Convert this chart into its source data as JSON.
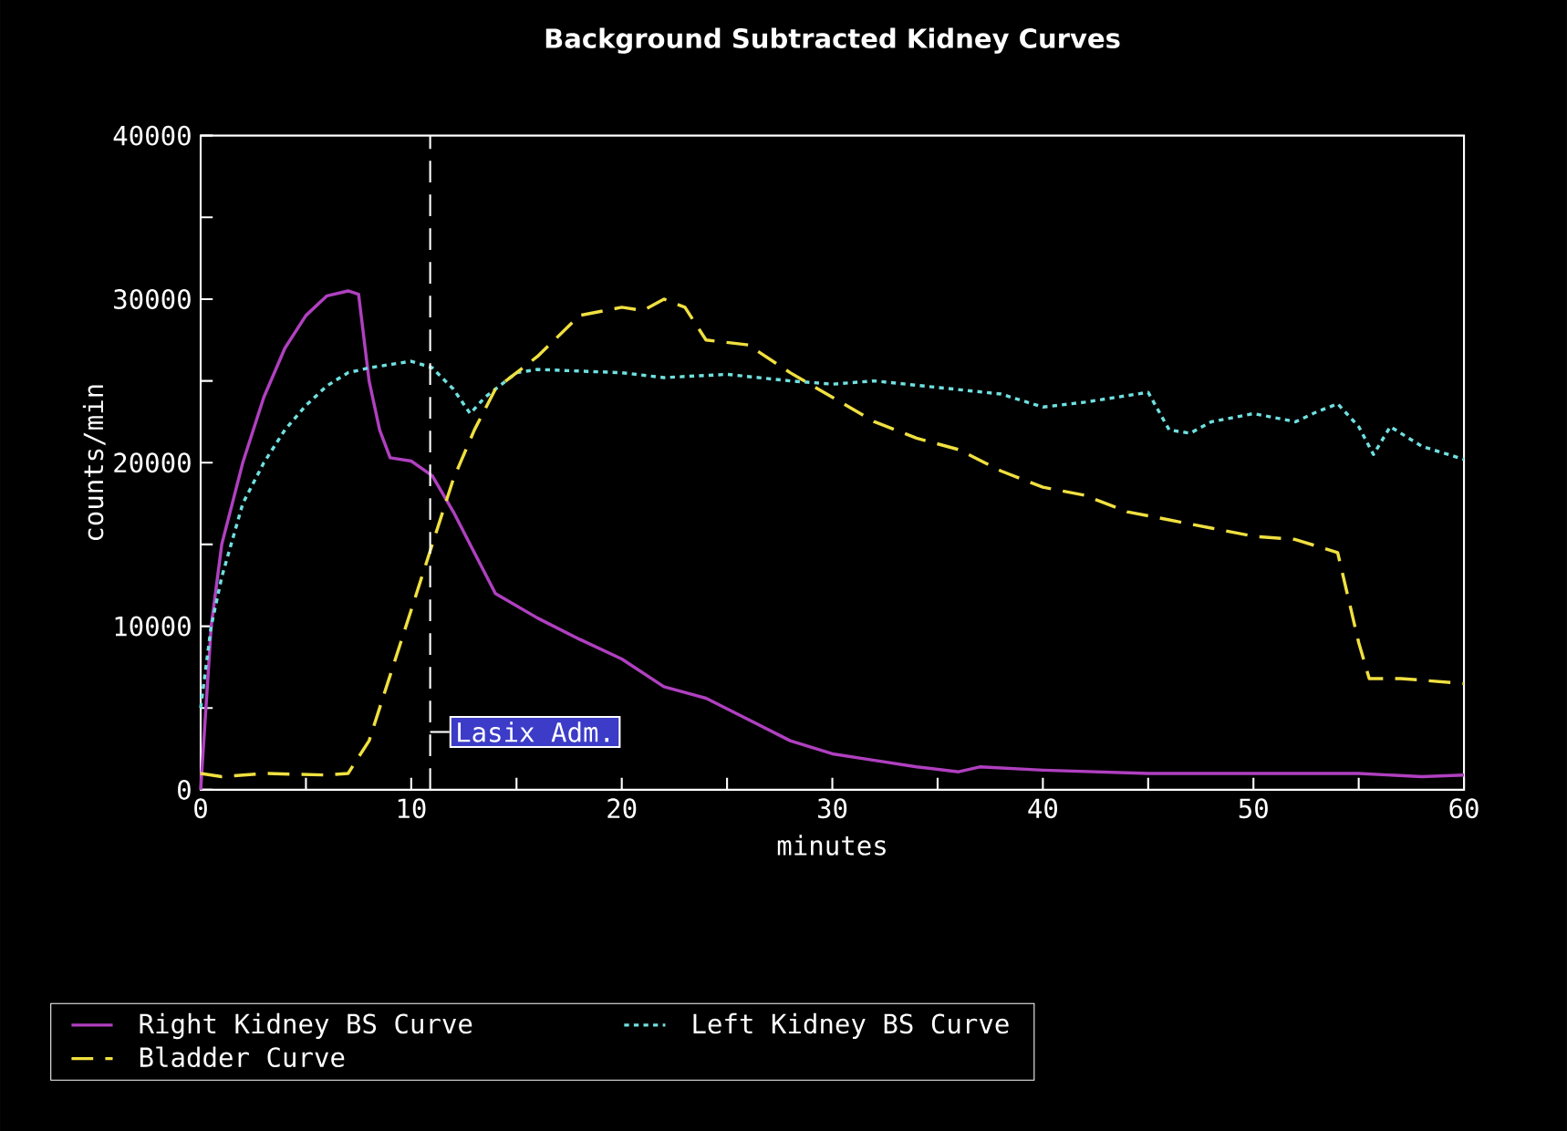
{
  "chart_data": {
    "type": "line",
    "title": "Background Subtracted Kidney Curves",
    "xlabel": "minutes",
    "ylabel": "counts/min",
    "xlim": [
      0,
      60
    ],
    "ylim": [
      0,
      40000
    ],
    "xticks": [
      0,
      {
        "value": 5,
        "label": null
      },
      10,
      {
        "value": 15,
        "label": null
      },
      20,
      {
        "value": 25,
        "label": null
      },
      30,
      {
        "value": 35,
        "label": null
      },
      40,
      {
        "value": 45,
        "label": null
      },
      50,
      {
        "value": 55,
        "label": null
      },
      60
    ],
    "yticks": [
      0,
      {
        "value": 5000,
        "label": null
      },
      10000,
      {
        "value": 15000,
        "label": null
      },
      20000,
      {
        "value": 25000,
        "label": null
      },
      30000,
      {
        "value": 35000,
        "label": null
      },
      40000
    ],
    "grid": false,
    "legend": "bottom",
    "marker": "none",
    "ref_lines": [
      {
        "axis": "x",
        "value": 10.9,
        "label": "Lasix Adm.",
        "color": "#ffffff",
        "line_style": "dashed"
      }
    ],
    "series": [
      {
        "name": "Right Kidney BS Curve",
        "color": "#b040c0",
        "line_style": "solid",
        "x": [
          0,
          0.3,
          0.5,
          1,
          2,
          3,
          4,
          5,
          6,
          7,
          7.5,
          8,
          8.5,
          9,
          10,
          11,
          12,
          14,
          16,
          18,
          20,
          22,
          24,
          26,
          28,
          30,
          32,
          34,
          36,
          37,
          40,
          45,
          50,
          55,
          58,
          60
        ],
        "values": [
          0,
          6000,
          10000,
          15000,
          20000,
          24000,
          27000,
          29000,
          30200,
          30500,
          30300,
          25000,
          22000,
          20300,
          20100,
          19200,
          17000,
          12000,
          10500,
          9200,
          8000,
          6300,
          5600,
          4300,
          3000,
          2200,
          1800,
          1400,
          1100,
          1400,
          1200,
          1000,
          1000,
          1000,
          800,
          900
        ]
      },
      {
        "name": "Left Kidney BS Curve",
        "color": "#70e0e0",
        "line_style": "dotted",
        "x": [
          0,
          0.3,
          0.5,
          1,
          2,
          3,
          4,
          5,
          6,
          7,
          8,
          10,
          11,
          12,
          12.8,
          13.5,
          15,
          16,
          20,
          22,
          25,
          28,
          30,
          32,
          35,
          38,
          40,
          42,
          44,
          45,
          46,
          47,
          48,
          50,
          52,
          53,
          54,
          55,
          55.7,
          56.5,
          58,
          60
        ],
        "values": [
          5000,
          8000,
          10000,
          13000,
          17500,
          20000,
          22000,
          23500,
          24700,
          25500,
          25800,
          26200,
          25800,
          24500,
          23000,
          24000,
          25500,
          25700,
          25500,
          25200,
          25400,
          25000,
          24800,
          25000,
          24600,
          24200,
          23400,
          23700,
          24100,
          24300,
          22000,
          21800,
          22500,
          23000,
          22500,
          23100,
          23600,
          22200,
          20500,
          22200,
          21000,
          20200
        ]
      },
      {
        "name": "Bladder Curve",
        "color": "#f0e040",
        "line_style": "dashed",
        "x": [
          0,
          1,
          3,
          6,
          7,
          8,
          9,
          10,
          11,
          12,
          13,
          14,
          16,
          18,
          20,
          21,
          22,
          23,
          24,
          26,
          28,
          30,
          32,
          34,
          36,
          38,
          40,
          42,
          44,
          46,
          48,
          50,
          52,
          54,
          55,
          55.5,
          57,
          60
        ],
        "values": [
          1000,
          800,
          1000,
          900,
          1000,
          3000,
          7000,
          11000,
          15000,
          19000,
          22000,
          24500,
          26500,
          29000,
          29500,
          29300,
          30000,
          29500,
          27500,
          27200,
          25500,
          24000,
          22500,
          21500,
          20800,
          19500,
          18500,
          18000,
          17000,
          16500,
          16000,
          15500,
          15300,
          14500,
          9000,
          6800,
          6800,
          6500
        ]
      }
    ]
  }
}
